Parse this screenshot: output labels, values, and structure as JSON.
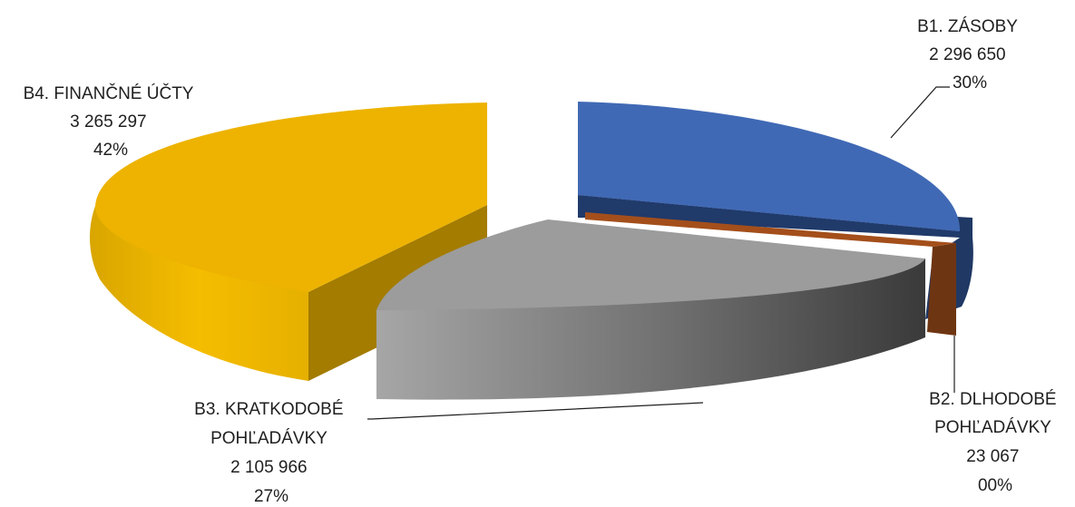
{
  "chart_data": {
    "type": "pie",
    "style": "3d-exploded",
    "legend": "none",
    "slices": [
      {
        "label_lines": [
          "B1. ZÁSOBY"
        ],
        "value": 2296650,
        "value_text": "2 296 650",
        "percent": 30,
        "percent_text": "30%",
        "color": "#4472c4",
        "side": "#2f528f",
        "dark": "#1f3864"
      },
      {
        "label_lines": [
          "B2. DLHODOBÉ",
          "POHĽADÁVKY"
        ],
        "value": 23067,
        "value_text": "23 067",
        "percent": 0,
        "percent_text": "00%",
        "color": "#ed7d31",
        "side": "#843c0c",
        "dark": "#5a2a08"
      },
      {
        "label_lines": [
          "B3. KRATKODOBÉ",
          "POHĽADÁVKY"
        ],
        "value": 2105966,
        "value_text": "2 105 966",
        "percent": 27,
        "percent_text": "27%",
        "color": "#a5a5a5",
        "side": "#8c8c8c",
        "dark": "#3f3f3f"
      },
      {
        "label_lines": [
          "B4. FINANČNÉ ÚČTY"
        ],
        "value": 3265297,
        "value_text": "3 265 297",
        "percent": 42,
        "percent_text": "42%",
        "color": "#ffc000",
        "side": "#e0aa00",
        "dark": "#a37c00"
      }
    ]
  }
}
